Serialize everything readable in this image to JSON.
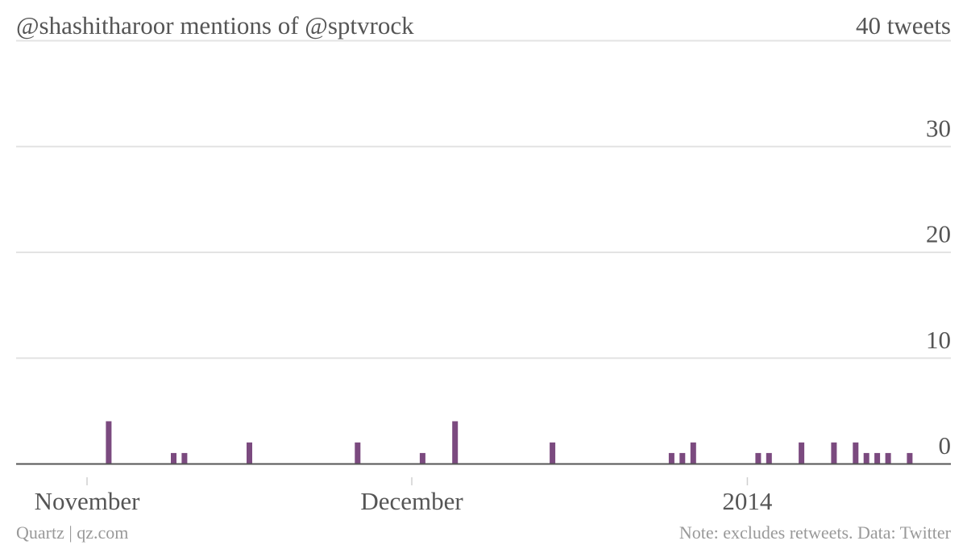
{
  "chart_data": {
    "type": "bar",
    "title": "@shashitharoor mentions of @sptvrock",
    "unit_label": "40 tweets",
    "x_ticks": [
      "November",
      "December",
      "2014"
    ],
    "y_ticks": [
      "30",
      "20",
      "10",
      "0"
    ],
    "ylim": [
      0,
      40
    ],
    "grid": true,
    "bar_color": "#7b4a7f",
    "data": [
      {
        "date": "2013-11-03",
        "value": 4
      },
      {
        "date": "2013-11-09",
        "value": 1
      },
      {
        "date": "2013-11-10",
        "value": 1
      },
      {
        "date": "2013-11-16",
        "value": 2
      },
      {
        "date": "2013-11-26",
        "value": 2
      },
      {
        "date": "2013-12-02",
        "value": 1
      },
      {
        "date": "2013-12-05",
        "value": 4
      },
      {
        "date": "2013-12-14",
        "value": 2
      },
      {
        "date": "2013-12-25",
        "value": 1
      },
      {
        "date": "2013-12-26",
        "value": 1
      },
      {
        "date": "2013-12-27",
        "value": 2
      },
      {
        "date": "2014-01-02",
        "value": 1
      },
      {
        "date": "2014-01-03",
        "value": 1
      },
      {
        "date": "2014-01-06",
        "value": 2
      },
      {
        "date": "2014-01-09",
        "value": 2
      },
      {
        "date": "2014-01-11",
        "value": 2
      },
      {
        "date": "2014-01-12",
        "value": 1
      },
      {
        "date": "2014-01-13",
        "value": 1
      },
      {
        "date": "2014-01-14",
        "value": 1
      },
      {
        "date": "2014-01-16",
        "value": 1
      }
    ]
  },
  "footer": {
    "source_left": "Quartz | qz.com",
    "note_right": "Note: excludes retweets. Data: Twitter"
  }
}
